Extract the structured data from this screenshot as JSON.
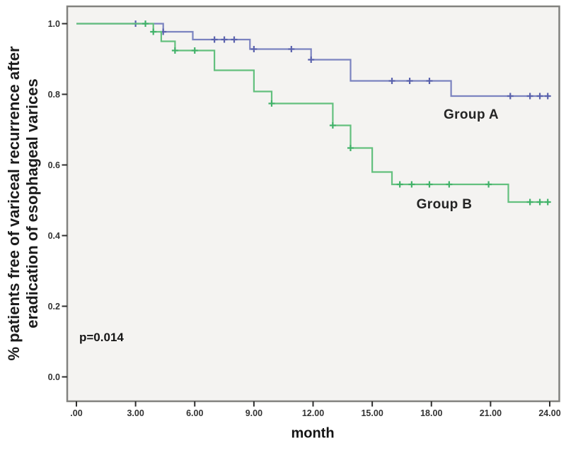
{
  "chart_data": {
    "type": "line",
    "subtype": "kaplan_meier_step",
    "title": "",
    "xlabel": "month",
    "ylabel": "% patients free of variceal recurrence after eradication of esophageal varices",
    "ylabel_lines": [
      "% patients free of variceal recurrence after",
      "eradication of esophageal varices"
    ],
    "xlim": [
      0,
      24
    ],
    "ylim": [
      0.0,
      1.05
    ],
    "x_tick_labels": [
      ".00",
      "3.00",
      "6.00",
      "9.00",
      "12.00",
      "15.00",
      "18.00",
      "21.00",
      "24.00"
    ],
    "x_tick_values": [
      0,
      3,
      6,
      9,
      12,
      15,
      18,
      21,
      24
    ],
    "y_tick_labels": [
      "1.0",
      "0.8",
      "0.6",
      "0.4",
      "0.2",
      "0.0"
    ],
    "y_tick_values": [
      1.0,
      0.8,
      0.6,
      0.4,
      0.2,
      0.0
    ],
    "grid": false,
    "legend_position": "inline-labels",
    "plot_bg": "#f4f3f1",
    "frame_color": "#82827f",
    "tick_color": "#2e2e2e",
    "annotations": [
      {
        "text": "p=0.014",
        "x": 0.2,
        "y": 0.113
      }
    ],
    "series": [
      {
        "name": "Group A",
        "color": "#7b83c0",
        "censor_color": "#5a62ad",
        "label_anchor": {
          "month": 20.0,
          "value": 0.74
        },
        "steps": [
          [
            0,
            1.0
          ],
          [
            4.4,
            1.0
          ],
          [
            4.4,
            0.977
          ],
          [
            5.9,
            0.977
          ],
          [
            5.9,
            0.955
          ],
          [
            8.8,
            0.955
          ],
          [
            8.8,
            0.928
          ],
          [
            11.9,
            0.928
          ],
          [
            11.9,
            0.898
          ],
          [
            13.9,
            0.898
          ],
          [
            13.9,
            0.838
          ],
          [
            19.0,
            0.838
          ],
          [
            19.0,
            0.795
          ],
          [
            24.0,
            0.795
          ]
        ],
        "censors": [
          [
            3.0,
            1.0
          ],
          [
            4.4,
            0.977
          ],
          [
            7.0,
            0.955
          ],
          [
            7.5,
            0.955
          ],
          [
            8.0,
            0.955
          ],
          [
            9.0,
            0.928
          ],
          [
            10.9,
            0.928
          ],
          [
            11.9,
            0.898
          ],
          [
            16.0,
            0.838
          ],
          [
            16.9,
            0.838
          ],
          [
            17.9,
            0.838
          ],
          [
            22.0,
            0.795
          ],
          [
            23.0,
            0.795
          ],
          [
            23.5,
            0.795
          ],
          [
            23.9,
            0.795
          ]
        ]
      },
      {
        "name": "Group B",
        "color": "#63c07e",
        "censor_color": "#41b269",
        "label_anchor": {
          "month": 18.6,
          "value": 0.487
        },
        "steps": [
          [
            0,
            1.0
          ],
          [
            3.9,
            1.0
          ],
          [
            3.9,
            0.977
          ],
          [
            4.3,
            0.977
          ],
          [
            4.3,
            0.95
          ],
          [
            5.0,
            0.95
          ],
          [
            5.0,
            0.924
          ],
          [
            7.0,
            0.924
          ],
          [
            7.0,
            0.868
          ],
          [
            9.0,
            0.868
          ],
          [
            9.0,
            0.808
          ],
          [
            9.9,
            0.808
          ],
          [
            9.9,
            0.774
          ],
          [
            13.0,
            0.774
          ],
          [
            13.0,
            0.712
          ],
          [
            13.9,
            0.712
          ],
          [
            13.9,
            0.648
          ],
          [
            15.0,
            0.648
          ],
          [
            15.0,
            0.58
          ],
          [
            16.0,
            0.58
          ],
          [
            16.0,
            0.545
          ],
          [
            21.9,
            0.545
          ],
          [
            21.9,
            0.495
          ],
          [
            24.0,
            0.495
          ]
        ],
        "censors": [
          [
            3.5,
            1.0
          ],
          [
            3.9,
            0.977
          ],
          [
            5.0,
            0.924
          ],
          [
            6.0,
            0.924
          ],
          [
            9.9,
            0.774
          ],
          [
            13.0,
            0.712
          ],
          [
            13.9,
            0.648
          ],
          [
            16.4,
            0.545
          ],
          [
            17.0,
            0.545
          ],
          [
            17.9,
            0.545
          ],
          [
            18.9,
            0.545
          ],
          [
            20.9,
            0.545
          ],
          [
            23.0,
            0.495
          ],
          [
            23.5,
            0.495
          ],
          [
            23.9,
            0.495
          ]
        ]
      }
    ]
  }
}
